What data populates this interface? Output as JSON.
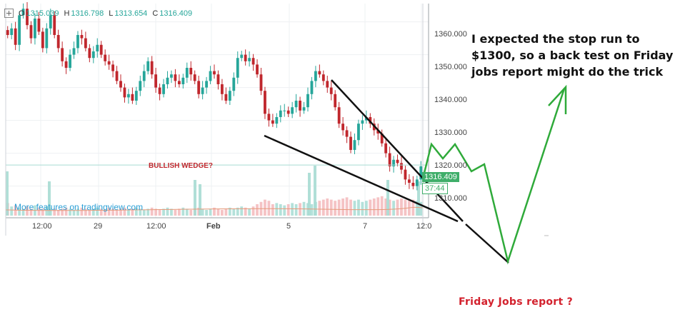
{
  "ohlc": {
    "o_key": "O",
    "o": "1315.039",
    "h_key": "H",
    "h": "1316.798",
    "l_key": "L",
    "l": "1313.654",
    "c_key": "C",
    "c": "1316.409"
  },
  "price_axis": [
    "1360.000",
    "1350.000",
    "1340.000",
    "1330.000",
    "1320.000",
    "1310.000"
  ],
  "time_axis": [
    {
      "text": "12:00",
      "bold": false
    },
    {
      "text": "29",
      "bold": false
    },
    {
      "text": "12:00",
      "bold": false
    },
    {
      "text": "Feb",
      "bold": true
    },
    {
      "text": "5",
      "bold": false
    },
    {
      "text": "7",
      "bold": false
    },
    {
      "text": "12:0",
      "bold": false
    }
  ],
  "current_price_badge": "1316.409",
  "countdown_badge": "37:44",
  "tradingview_link": "More features on tradingview.com",
  "wedge_label": "BULLISH WEDGE?",
  "note_text": "I expected the stop run to $1300, so a back test on Friday jobs report might do the trick",
  "friday_label": "Friday Jobs report  ?",
  "colors": {
    "up": "#26a69a",
    "down": "#c0272d",
    "arrow": "#2faa3a",
    "label_red": "#c0272d",
    "link": "#2a9fd6"
  },
  "chart_data": {
    "type": "candlestick",
    "ylim": [
      1306,
      1366
    ],
    "y_ticks": [
      1360,
      1350,
      1340,
      1330,
      1320,
      1310
    ],
    "x_tick_labels": [
      "12:00",
      "29",
      "12:00",
      "Feb",
      "5",
      "7",
      "12:0"
    ],
    "current_price": 1316.409,
    "closes": [
      1356,
      1358,
      1353,
      1362,
      1364,
      1359,
      1355,
      1361,
      1357,
      1352,
      1358,
      1362,
      1356,
      1352,
      1348,
      1346,
      1350,
      1352,
      1356,
      1355,
      1352,
      1349,
      1351,
      1353,
      1350,
      1348,
      1347,
      1345,
      1342,
      1340,
      1337,
      1338,
      1336,
      1339,
      1342,
      1345,
      1348,
      1344,
      1340,
      1338,
      1341,
      1343,
      1344,
      1342,
      1341,
      1343,
      1346,
      1344,
      1342,
      1338,
      1340,
      1342,
      1345,
      1344,
      1341,
      1338,
      1336,
      1339,
      1343,
      1349,
      1350,
      1348,
      1349,
      1347,
      1344,
      1339,
      1332,
      1330,
      1329,
      1331,
      1333,
      1333,
      1332,
      1334,
      1336,
      1333,
      1334,
      1338,
      1342,
      1345,
      1344,
      1342,
      1340,
      1338,
      1334,
      1329,
      1327,
      1325,
      1321,
      1324,
      1329,
      1330,
      1331,
      1329,
      1327,
      1326,
      1323,
      1320,
      1316,
      1318,
      1317,
      1315,
      1312,
      1311,
      1310,
      1312,
      1316
    ],
    "volumes": [
      0.55,
      0.4,
      0.45,
      0.35,
      0.3,
      0.4,
      0.3,
      0.45,
      0.35,
      0.3,
      0.4,
      0.35,
      0.3,
      0.25,
      0.3,
      0.35,
      0.3,
      0.25,
      0.3,
      0.35,
      0.3,
      0.25,
      0.3,
      0.35,
      0.3,
      0.25,
      0.35,
      0.3,
      0.25,
      0.3,
      0.35,
      0.25,
      0.3,
      0.35,
      0.3,
      0.25,
      0.3,
      0.35,
      0.3,
      0.25,
      0.3,
      0.35,
      0.3,
      0.25,
      0.3,
      0.35,
      0.3,
      0.25,
      0.3,
      0.35,
      0.3,
      0.25,
      0.3,
      0.35,
      0.3,
      0.25,
      0.3,
      0.35,
      0.3,
      0.35,
      0.4,
      0.35,
      0.3,
      0.4,
      0.5,
      0.6,
      0.7,
      0.65,
      0.5,
      0.55,
      0.5,
      0.45,
      0.5,
      0.55,
      0.5,
      0.55,
      0.6,
      0.55,
      0.5,
      0.6,
      0.65,
      0.7,
      0.75,
      0.7,
      0.65,
      0.7,
      0.75,
      0.8,
      0.7,
      0.65,
      0.7,
      0.6,
      0.65,
      0.7,
      0.75,
      0.8,
      0.85,
      0.75,
      0.7,
      0.65,
      0.7,
      0.75,
      0.7,
      0.65,
      0.7,
      0.65,
      0.6
    ]
  }
}
